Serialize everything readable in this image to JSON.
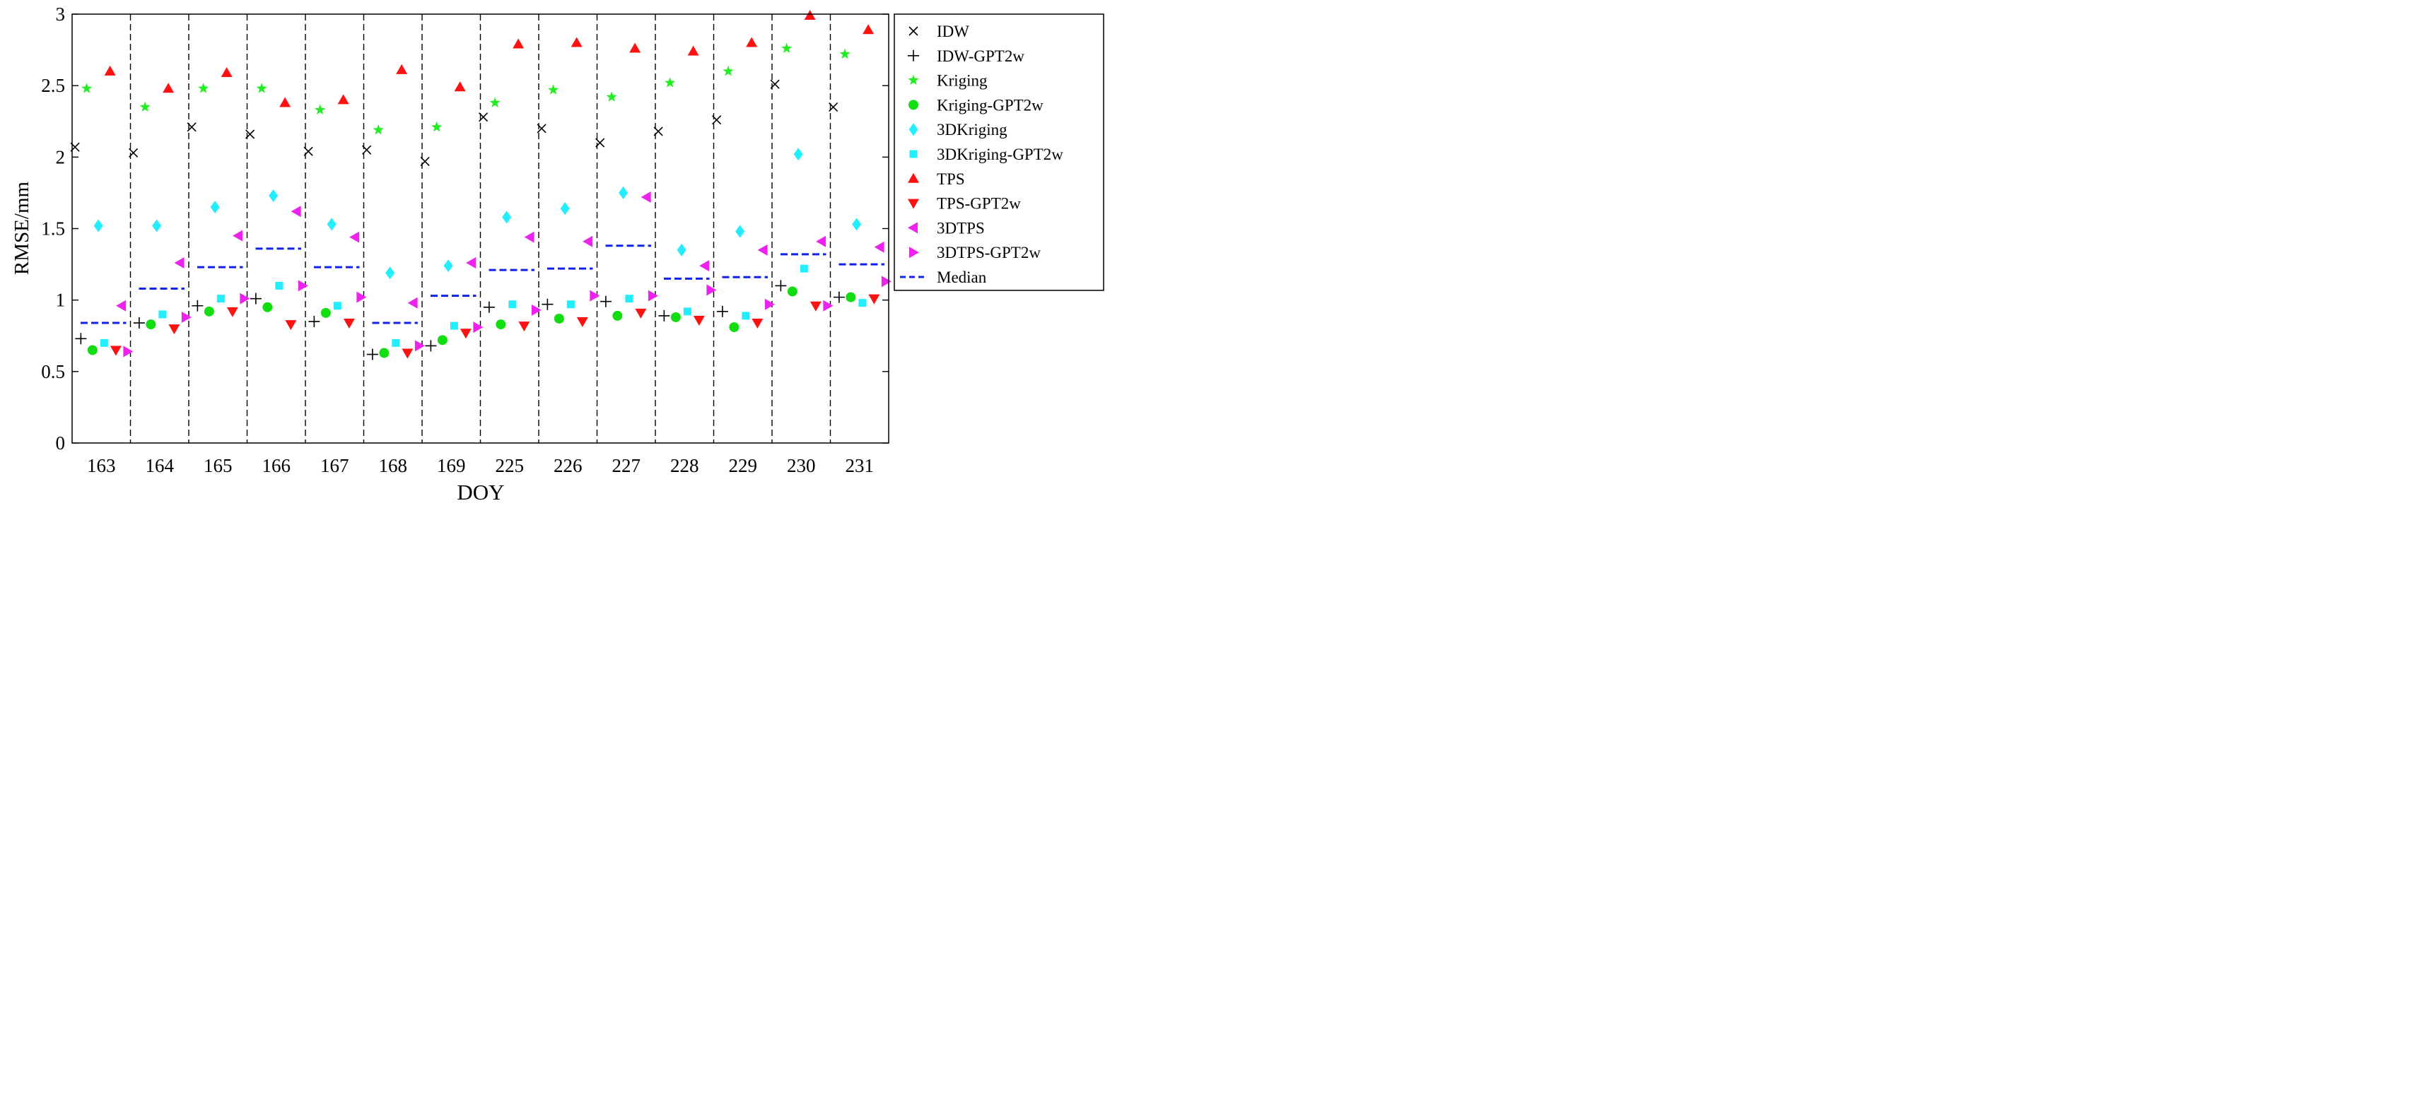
{
  "chart_data": {
    "type": "scatter",
    "title": "",
    "xlabel": "DOY",
    "ylabel": "RMSE/mm",
    "ylim": [
      0,
      3
    ],
    "yticks": [
      0,
      0.5,
      1,
      1.5,
      2,
      2.5,
      3
    ],
    "ytick_labels": [
      "0",
      "0.5",
      "1",
      "1.5",
      "2",
      "2.5",
      "3"
    ],
    "categories": [
      "163",
      "164",
      "165",
      "166",
      "167",
      "168",
      "169",
      "225",
      "226",
      "227",
      "228",
      "229",
      "230",
      "231"
    ],
    "legend_position": "outside-right",
    "series": [
      {
        "name": "IDW",
        "marker": "x",
        "color": "#000000",
        "values": [
          2.07,
          2.03,
          2.21,
          2.16,
          2.04,
          2.05,
          1.97,
          2.28,
          2.2,
          2.1,
          2.18,
          2.26,
          2.51,
          2.35
        ]
      },
      {
        "name": "IDW-GPT2w",
        "marker": "plus",
        "color": "#000000",
        "values": [
          0.73,
          0.84,
          0.96,
          1.01,
          0.85,
          0.62,
          0.68,
          0.95,
          0.97,
          0.99,
          0.89,
          0.92,
          1.1,
          1.02
        ]
      },
      {
        "name": "Kriging",
        "marker": "star",
        "color": "#22ee22",
        "values": [
          2.48,
          2.35,
          2.48,
          2.48,
          2.33,
          2.19,
          2.21,
          2.38,
          2.47,
          2.42,
          2.52,
          2.6,
          2.76,
          2.72
        ]
      },
      {
        "name": "Kriging-GPT2w",
        "marker": "circle",
        "color": "#11dd11",
        "values": [
          0.65,
          0.83,
          0.92,
          0.95,
          0.91,
          0.63,
          0.72,
          0.83,
          0.87,
          0.89,
          0.88,
          0.81,
          1.06,
          1.02
        ]
      },
      {
        "name": "3DKriging",
        "marker": "diamond",
        "color": "#22eeff",
        "values": [
          1.52,
          1.52,
          1.65,
          1.73,
          1.53,
          1.19,
          1.24,
          1.58,
          1.64,
          1.75,
          1.35,
          1.48,
          2.02,
          1.53
        ]
      },
      {
        "name": "3DKriging-GPT2w",
        "marker": "square",
        "color": "#22eeff",
        "values": [
          0.7,
          0.9,
          1.01,
          1.1,
          0.96,
          0.7,
          0.82,
          0.97,
          0.97,
          1.01,
          0.92,
          0.89,
          1.22,
          0.98
        ]
      },
      {
        "name": "TPS",
        "marker": "triangle-up",
        "color": "#ff1111",
        "values": [
          2.6,
          2.48,
          2.59,
          2.38,
          2.4,
          2.61,
          2.49,
          2.79,
          2.8,
          2.76,
          2.74,
          2.8,
          2.99,
          2.89
        ]
      },
      {
        "name": "TPS-GPT2w",
        "marker": "triangle-down",
        "color": "#ff1111",
        "values": [
          0.65,
          0.8,
          0.92,
          0.83,
          0.84,
          0.63,
          0.77,
          0.82,
          0.85,
          0.91,
          0.86,
          0.84,
          0.96,
          1.01
        ]
      },
      {
        "name": "3DTPS",
        "marker": "triangle-left",
        "color": "#ee22ee",
        "values": [
          0.96,
          1.26,
          1.45,
          1.62,
          1.44,
          0.98,
          1.26,
          1.44,
          1.41,
          1.72,
          1.24,
          1.35,
          1.41,
          1.37
        ]
      },
      {
        "name": "3DTPS-GPT2w",
        "marker": "triangle-right",
        "color": "#ee22ee",
        "values": [
          0.64,
          0.88,
          1.01,
          1.1,
          1.02,
          0.68,
          0.81,
          0.93,
          1.03,
          1.03,
          1.07,
          0.97,
          0.96,
          1.13
        ]
      },
      {
        "name": "Median",
        "marker": "dash",
        "color": "#1122ee",
        "values": [
          0.84,
          1.08,
          1.23,
          1.36,
          1.23,
          0.84,
          1.03,
          1.21,
          1.22,
          1.38,
          1.15,
          1.16,
          1.32,
          1.25
        ]
      }
    ]
  }
}
